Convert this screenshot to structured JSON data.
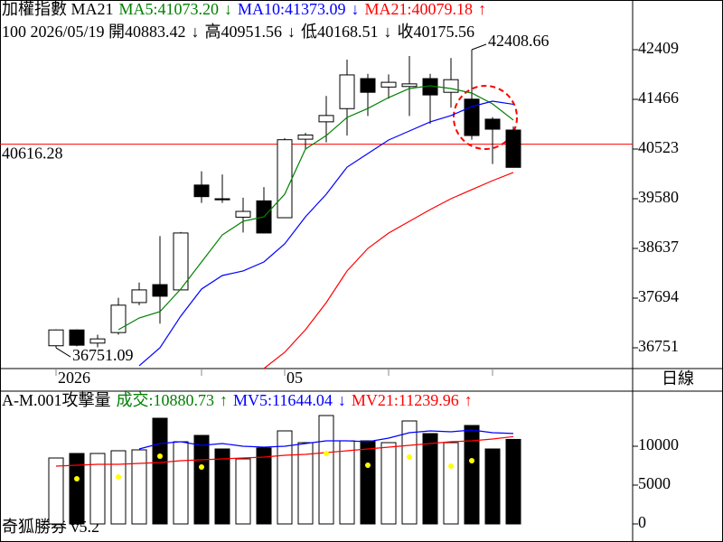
{
  "panel_label": "日線",
  "footer": "奇狐勝券 v5.2",
  "chart_data": [
    {
      "type": "candlestick",
      "title": "加權指數 MA21",
      "header": [
        {
          "text": "MA5:41073.20",
          "color": "#008000"
        },
        {
          "text": "↓",
          "color": "#008000"
        },
        {
          "text": "MA10:41373.09",
          "color": "#0000ff"
        },
        {
          "text": "↓",
          "color": "#0000ff"
        },
        {
          "text": "MA21:40079.18",
          "color": "#ff0000"
        },
        {
          "text": "↑",
          "color": "#ff0000"
        }
      ],
      "info": [
        "100 2026/05/19 開40883.42",
        "↓",
        "高40951.56",
        "↓",
        "低40168.51",
        "↓",
        "收40175.56"
      ],
      "categories": [
        "2026",
        null,
        null,
        null,
        null,
        null,
        null,
        null,
        null,
        null,
        null,
        "05",
        null,
        null,
        null,
        null,
        null,
        null,
        null,
        null,
        null,
        null,
        null
      ],
      "open": [
        36790,
        37090,
        36840,
        37040,
        37610,
        37950,
        37850,
        39840,
        39580,
        39230,
        39540,
        39220,
        40710,
        41040,
        41290,
        41860,
        41700,
        41710,
        41860,
        41600,
        41470,
        41090,
        40883.42
      ],
      "high": [
        37100,
        37100,
        37000,
        37700,
        37990,
        38870,
        38950,
        40100,
        40040,
        39600,
        39800,
        40730,
        40830,
        41530,
        42220,
        41950,
        41940,
        42290,
        41950,
        42250,
        42408.66,
        41130,
        40951.56
      ],
      "low": [
        36751.09,
        36780,
        36760,
        37000,
        37560,
        37210,
        37850,
        39500,
        39500,
        38940,
        38920,
        39220,
        40510,
        40650,
        40780,
        41150,
        41480,
        41150,
        41000,
        41310,
        40700,
        40240,
        40168.51
      ],
      "close": [
        37090,
        36800,
        36920,
        37560,
        37850,
        37730,
        38930,
        39620,
        39560,
        39340,
        38930,
        40700,
        40790,
        41160,
        41930,
        41600,
        41790,
        41760,
        41550,
        41840,
        40780,
        40900,
        40175.56
      ],
      "series": [
        {
          "color": "#008000",
          "values": [
            null,
            null,
            null,
            37094,
            37317,
            37437,
            37866,
            38380,
            38894,
            39152,
            39237,
            39666,
            40523,
            40780,
            41123,
            41294,
            41500,
            41672,
            41723,
            41672,
            41586,
            41380,
            41073.2
          ]
        },
        {
          "color": "#0000ff",
          "values": [
            null,
            null,
            null,
            null,
            36409,
            36752,
            37352,
            37866,
            38123,
            38209,
            38380,
            38723,
            39237,
            39666,
            40180,
            40437,
            40695,
            40866,
            41038,
            41158,
            41329,
            41432,
            41373.09
          ]
        },
        {
          "color": "#ff0000",
          "values": [
            null,
            null,
            null,
            null,
            null,
            null,
            null,
            null,
            null,
            null,
            36357,
            36666,
            37094,
            37609,
            38209,
            38637,
            38929,
            39152,
            39375,
            39580,
            39752,
            39923,
            40079.18
          ]
        }
      ],
      "hline": {
        "value": 40616.28,
        "color": "#ff0000"
      },
      "annotations": [
        {
          "x": 20,
          "value": 42408.66
        },
        {
          "x": 0,
          "value": 36751.09
        }
      ],
      "ylim": [
        36357,
        43352
      ],
      "yticks": [
        36751,
        37694,
        38637,
        39580,
        40523,
        41466,
        42409
      ]
    },
    {
      "type": "bar",
      "title": "A-M.001攻擊量",
      "header": [
        {
          "text": "成交:10880.73",
          "color": "#008000"
        },
        {
          "text": "↑",
          "color": "#008000"
        },
        {
          "text": "MV5:11644.04",
          "color": "#0000ff"
        },
        {
          "text": "↓",
          "color": "#0000ff"
        },
        {
          "text": "MV21:11239.96",
          "color": "#ff0000"
        },
        {
          "text": "↑",
          "color": "#ff0000"
        }
      ],
      "values": [
        8488,
        9070,
        9070,
        9419,
        9535,
        13605,
        10581,
        11395,
        9651,
        8372,
        9767,
        11977,
        10465,
        13953,
        10698,
        10698,
        10465,
        13256,
        11628,
        10465,
        12674,
        9651,
        10880.73
      ],
      "series": [
        {
          "color": "#0000ff",
          "values": [
            null,
            null,
            null,
            null,
            9651,
            10349,
            10581,
            10116,
            10349,
            10000,
            9884,
            10000,
            10349,
            10698,
            10698,
            10581,
            11047,
            11744,
            11977,
            11860,
            12093,
            11744,
            11644.04
          ]
        },
        {
          "color": "#ff0000",
          "values": [
            7442,
            7558,
            7674,
            7674,
            7791,
            7907,
            8140,
            8256,
            8372,
            8488,
            8605,
            8837,
            8953,
            9186,
            9419,
            9651,
            9884,
            10116,
            10349,
            10581,
            10698,
            10930,
            11239.96
          ]
        }
      ],
      "dots": {
        "color": "#ffff00",
        "values": [
          null,
          5814,
          null,
          6047,
          null,
          8721,
          null,
          7326,
          null,
          null,
          null,
          null,
          null,
          9070,
          null,
          7558,
          null,
          8605,
          null,
          7442,
          8140,
          null,
          null
        ]
      },
      "ylim": [
        0,
        17093
      ],
      "yticks": [
        0,
        5000,
        10000
      ]
    }
  ]
}
